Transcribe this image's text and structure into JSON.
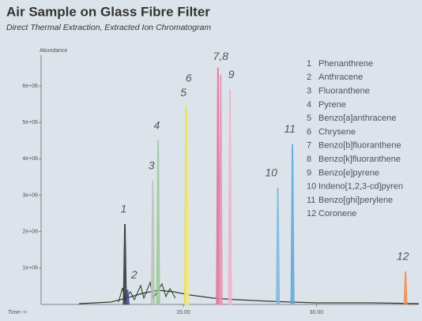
{
  "chart_data": {
    "type": "chromatogram",
    "title": "Air Sample on Glass Fibre Filter",
    "subtitle": "Direct Thermal Extraction, Extracted Ion Chromatogram",
    "y_label": "Abundance",
    "x_label": "Time-->",
    "xlim": [
      9.3,
      37.7
    ],
    "ylim": [
      0,
      6500000
    ],
    "xticks": [
      {
        "value": 20,
        "label": "20.00"
      },
      {
        "value": 30,
        "label": "30.00"
      }
    ],
    "yticks": [
      {
        "value": 1000000,
        "label": "1e+06"
      },
      {
        "value": 2000000,
        "label": "2e+06"
      },
      {
        "value": 3000000,
        "label": "3e+06"
      },
      {
        "value": 4000000,
        "label": "4e+06"
      },
      {
        "value": 5000000,
        "label": "5e+06"
      },
      {
        "value": 6000000,
        "label": "6e+06"
      }
    ],
    "peaks": [
      {
        "id": "1",
        "name": "Phenanthrene",
        "color": "#333333",
        "time": 15.6,
        "height": 2200000
      },
      {
        "id": "2",
        "name": "Anthracene",
        "color": "#3a4f8a",
        "time": 15.8,
        "height": 400000
      },
      {
        "id": "3",
        "name": "Fluoranthene",
        "color": "#b9c4b4",
        "time": 17.7,
        "height": 3400000
      },
      {
        "id": "4",
        "name": "Pyrene",
        "color": "#9cc89a",
        "time": 18.1,
        "height": 4500000
      },
      {
        "id": "5",
        "name": "Benzo[a]anthracene",
        "color": "#e3e04a",
        "time": 20.2,
        "height": 5450000
      },
      {
        "id": "6",
        "name": "Chrysene",
        "color": "#f0e88a",
        "time": 20.3,
        "height": 5300000
      },
      {
        "id": "7",
        "name": "Benzo[b]fluoranthene",
        "color": "#e0709a",
        "time": 22.6,
        "height": 6500000
      },
      {
        "id": "8",
        "name": "Benzo[k]fluoranthene",
        "color": "#e690b0",
        "time": 22.8,
        "height": 6300000
      },
      {
        "id": "9",
        "name": "Benzo[e]pyrene",
        "color": "#f0b0c8",
        "time": 23.5,
        "height": 5900000
      },
      {
        "id": "10",
        "name": "Indeno[1,2,3-cd]pyren",
        "color": "#7ab8e0",
        "time": 27.1,
        "height": 3200000
      },
      {
        "id": "11",
        "name": "Benzo[ghi]perylene",
        "color": "#5aa8e0",
        "time": 28.2,
        "height": 4400000
      },
      {
        "id": "12",
        "name": "Coronene",
        "color": "#f08c50",
        "time": 36.7,
        "height": 900000
      }
    ],
    "annotations": [
      {
        "text": "1",
        "x": 15.5,
        "y": 2600000
      },
      {
        "text": "2",
        "x": 16.3,
        "y": 800000
      },
      {
        "text": "3",
        "x": 17.6,
        "y": 3800000
      },
      {
        "text": "4",
        "x": 18.0,
        "y": 4900000
      },
      {
        "text": "5",
        "x": 20.0,
        "y": 5800000
      },
      {
        "text": "6",
        "x": 20.4,
        "y": 6200000
      },
      {
        "text": "7,8",
        "x": 22.8,
        "y": 6800000
      },
      {
        "text": "9",
        "x": 23.6,
        "y": 6300000
      },
      {
        "text": "10",
        "x": 26.6,
        "y": 3600000
      },
      {
        "text": "11",
        "x": 28.0,
        "y": 4800000
      },
      {
        "text": "12",
        "x": 36.5,
        "y": 1300000
      }
    ]
  }
}
